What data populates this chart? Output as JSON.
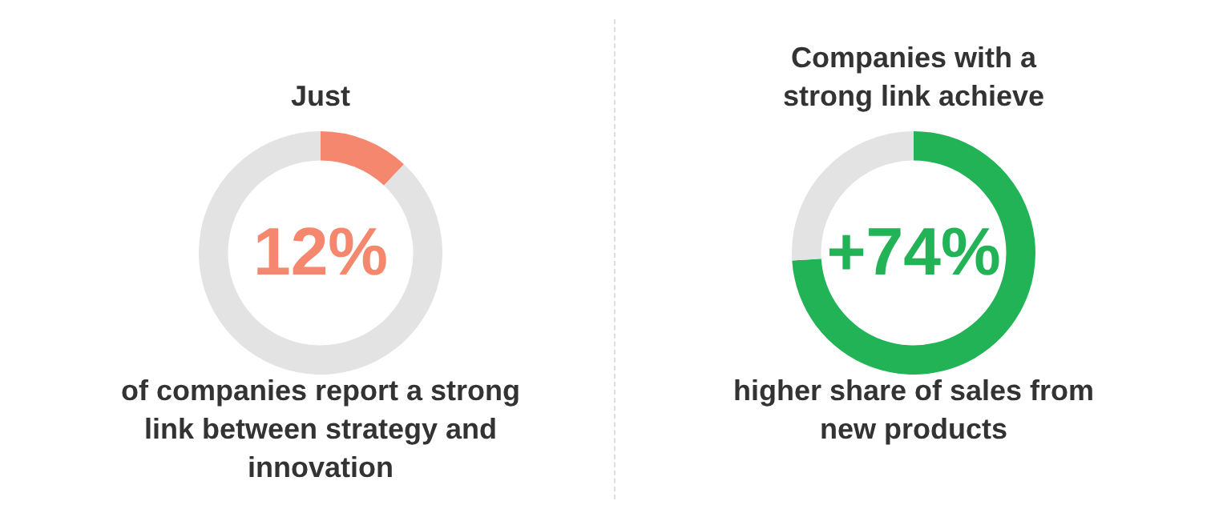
{
  "chart_data": [
    {
      "type": "donut",
      "title": "Just",
      "categories": [
        null,
        null
      ],
      "values": [
        12,
        88
      ],
      "colors": [
        "#f4876e",
        "#e3e3e3"
      ],
      "value_labels": [
        "12%",
        null
      ],
      "annotations": [
        "of companies report a strong link between strategy and innovation"
      ]
    },
    {
      "type": "donut",
      "title": "Companies with a strong link achieve",
      "categories": [
        null,
        null
      ],
      "values": [
        74,
        26
      ],
      "colors": [
        "#22b356",
        "#e3e3e3"
      ],
      "value_labels": [
        "+74%",
        null
      ],
      "annotations": [
        "higher share of sales from new products"
      ]
    }
  ]
}
